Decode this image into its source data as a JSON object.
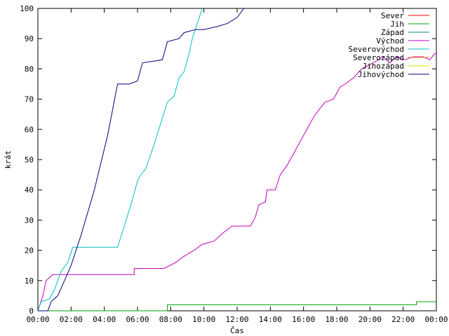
{
  "chart_data": {
    "type": "line",
    "xlabel": "Čas",
    "ylabel": "krát",
    "xlim": [
      0,
      24
    ],
    "ylim": [
      0,
      100
    ],
    "x_ticks": [
      {
        "v": 0,
        "label": "00:00"
      },
      {
        "v": 2,
        "label": "02:00"
      },
      {
        "v": 4,
        "label": "04:00"
      },
      {
        "v": 6,
        "label": "06:00"
      },
      {
        "v": 8,
        "label": "08:00"
      },
      {
        "v": 10,
        "label": "10:00"
      },
      {
        "v": 12,
        "label": "12:00"
      },
      {
        "v": 14,
        "label": "14:00"
      },
      {
        "v": 16,
        "label": "16:00"
      },
      {
        "v": 18,
        "label": "18:00"
      },
      {
        "v": 20,
        "label": "20:00"
      },
      {
        "v": 22,
        "label": "22:00"
      },
      {
        "v": 24,
        "label": "00:00"
      }
    ],
    "y_ticks": [
      0,
      10,
      20,
      30,
      40,
      50,
      60,
      70,
      80,
      90,
      100
    ],
    "grid": false,
    "legend_position": "top-right",
    "series": [
      {
        "name": "Sever",
        "color": "#ff0000",
        "points": []
      },
      {
        "name": "Jih",
        "color": "#00a000",
        "points": [
          [
            0,
            0
          ],
          [
            7.8,
            0
          ],
          [
            7.8,
            2
          ],
          [
            22.8,
            2
          ],
          [
            22.8,
            3
          ],
          [
            24,
            3
          ]
        ]
      },
      {
        "name": "Západ",
        "color": "#008080",
        "points": []
      },
      {
        "name": "Východ",
        "color": "#c000c0",
        "points": [
          [
            0,
            0
          ],
          [
            0.3,
            5
          ],
          [
            0.5,
            10
          ],
          [
            0.9,
            12
          ],
          [
            1.5,
            12
          ],
          [
            5.8,
            12
          ],
          [
            5.8,
            14
          ],
          [
            7.6,
            14
          ],
          [
            8.3,
            16
          ],
          [
            8.8,
            18
          ],
          [
            9.4,
            20
          ],
          [
            9.9,
            22
          ],
          [
            10.6,
            23
          ],
          [
            11.2,
            26
          ],
          [
            11.7,
            28
          ],
          [
            12.8,
            28
          ],
          [
            13.1,
            31
          ],
          [
            13.3,
            35
          ],
          [
            13.7,
            36
          ],
          [
            13.8,
            40
          ],
          [
            14.3,
            40
          ],
          [
            14.6,
            45
          ],
          [
            15.0,
            48
          ],
          [
            15.3,
            51
          ],
          [
            15.7,
            55
          ],
          [
            16.0,
            58
          ],
          [
            16.3,
            61
          ],
          [
            16.6,
            64
          ],
          [
            17.0,
            67
          ],
          [
            17.3,
            69
          ],
          [
            17.8,
            70
          ],
          [
            18.2,
            74
          ],
          [
            18.5,
            75
          ],
          [
            19.0,
            77
          ],
          [
            19.5,
            80
          ],
          [
            20.2,
            82
          ],
          [
            20.8,
            84
          ],
          [
            21.2,
            82
          ],
          [
            21.6,
            84
          ],
          [
            22.1,
            83
          ],
          [
            22.6,
            84
          ],
          [
            23.2,
            84
          ],
          [
            23.6,
            83
          ],
          [
            23.9,
            85
          ],
          [
            24,
            85
          ]
        ]
      },
      {
        "name": "Severovýchod",
        "color": "#00c0c0",
        "points": [
          [
            0,
            0
          ],
          [
            0.2,
            3
          ],
          [
            0.7,
            4
          ],
          [
            1.0,
            7
          ],
          [
            1.4,
            13
          ],
          [
            1.8,
            16
          ],
          [
            2.1,
            21
          ],
          [
            4.8,
            21
          ],
          [
            5.2,
            28
          ],
          [
            5.6,
            35
          ],
          [
            6.0,
            43
          ],
          [
            6.2,
            45
          ],
          [
            6.5,
            47
          ],
          [
            7.0,
            55
          ],
          [
            7.4,
            62
          ],
          [
            7.8,
            69
          ],
          [
            8.2,
            71
          ],
          [
            8.5,
            77
          ],
          [
            8.8,
            79
          ],
          [
            9.1,
            85
          ],
          [
            9.3,
            90
          ],
          [
            9.6,
            95
          ],
          [
            9.9,
            100
          ]
        ]
      },
      {
        "name": "Severozápad",
        "color": "#ff8000",
        "points": []
      },
      {
        "name": "Jihozápad",
        "color": "#e0e000",
        "points": []
      },
      {
        "name": "Jihovýchod",
        "color": "#000080",
        "points": [
          [
            0,
            0
          ],
          [
            0.6,
            0
          ],
          [
            0.8,
            3
          ],
          [
            1.2,
            5
          ],
          [
            1.6,
            10
          ],
          [
            2.0,
            15
          ],
          [
            2.6,
            25
          ],
          [
            3.4,
            40
          ],
          [
            4.2,
            58
          ],
          [
            4.8,
            75
          ],
          [
            5.5,
            75
          ],
          [
            6.0,
            76
          ],
          [
            6.3,
            82
          ],
          [
            7.5,
            83
          ],
          [
            7.8,
            89
          ],
          [
            8.5,
            90
          ],
          [
            8.8,
            92
          ],
          [
            9.5,
            93
          ],
          [
            10.0,
            93
          ],
          [
            10.8,
            94
          ],
          [
            11.4,
            95
          ],
          [
            12.0,
            97
          ],
          [
            12.4,
            100
          ]
        ]
      }
    ]
  }
}
